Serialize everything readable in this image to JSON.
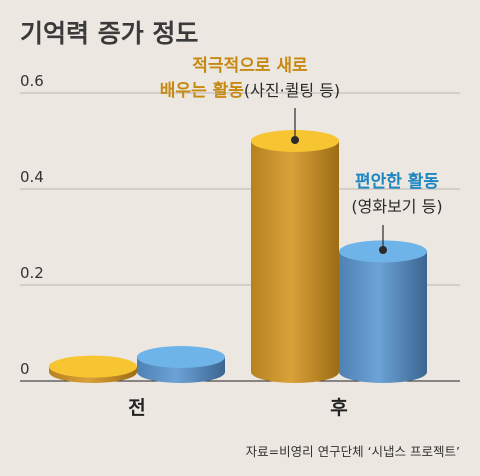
{
  "chart_data": {
    "type": "bar",
    "title": "기억력 증가 정도",
    "categories": [
      "전",
      "후"
    ],
    "series": [
      {
        "values": [
          0.03,
          0.5
        ],
        "color": "#f7c432"
      },
      {
        "values": [
          0.05,
          0.27
        ],
        "color": "#6fb4e8"
      }
    ],
    "ylim": [
      0,
      0.6
    ],
    "yticks": [
      "0",
      "0.2",
      "0.4",
      "0.6"
    ],
    "grid": true,
    "annotations": [
      {
        "series": 0,
        "line1": "적극적으로 새로",
        "line2_bold": "배우는 활동",
        "line2_rest": "(사진·퀼팅 등)"
      },
      {
        "series": 1,
        "line1": "편안한 활동",
        "line2": "(영화보기 등)"
      }
    ],
    "source": "자료=비영리 연구단체 ‘시냅스 프로젝트’"
  }
}
